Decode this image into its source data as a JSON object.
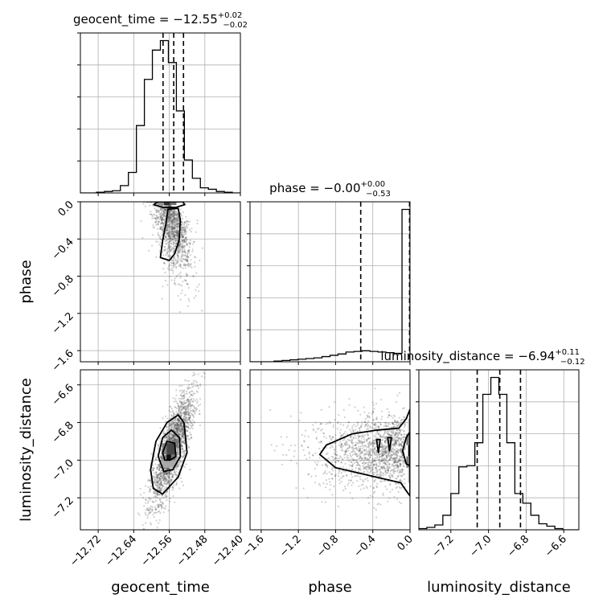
{
  "chart_data": {
    "type": "corner",
    "grid": true,
    "parameters": [
      "geocent_time",
      "phase",
      "luminosity_distance"
    ],
    "axis_labels": {
      "geocent_time": "geocent_time",
      "phase": "phase",
      "luminosity_distance": "luminosity_distance"
    },
    "ranges": {
      "geocent_time": [
        -12.76,
        -12.4
      ],
      "phase": [
        -1.72,
        0.0
      ],
      "luminosity_distance": [
        -7.37,
        -6.52
      ]
    },
    "ticks": {
      "geocent_time": {
        "values": [
          -12.72,
          -12.64,
          -12.56,
          -12.48,
          -12.4
        ],
        "labels": [
          "−12.72",
          "−12.64",
          "−12.56",
          "−12.48",
          "−12.40"
        ]
      },
      "phase": {
        "values": [
          -1.6,
          -1.2,
          -0.8,
          -0.4,
          0.0
        ],
        "labels": [
          "−1.6",
          "−1.2",
          "−0.8",
          "−0.4",
          "0.0"
        ]
      },
      "luminosity_distance": {
        "values": [
          -7.2,
          -7.0,
          -6.8,
          -6.6
        ],
        "labels": [
          "−7.2",
          "−7.0",
          "−6.8",
          "−6.6"
        ]
      }
    },
    "titles": [
      {
        "param": "geocent_time",
        "main": "geocent_time = −12.55",
        "sup": "+0.02",
        "sub": "−0.02"
      },
      {
        "param": "phase",
        "main": "phase = −0.00",
        "sup": "+0.00",
        "sub": "−0.53"
      },
      {
        "param": "luminosity_distance",
        "main": "luminosity_distance = −6.94",
        "sup": "+0.11",
        "sub": "−0.12"
      }
    ],
    "marginals": {
      "geocent_time": {
        "bin_edges": [
          -12.76,
          -12.742,
          -12.724,
          -12.706,
          -12.688,
          -12.67,
          -12.652,
          -12.634,
          -12.616,
          -12.598,
          -12.58,
          -12.562,
          -12.544,
          -12.526,
          -12.508,
          -12.49,
          -12.472,
          -12.454,
          -12.436,
          -12.418,
          -12.4
        ],
        "counts": [
          0,
          0,
          1,
          2,
          3,
          10,
          28,
          92,
          155,
          195,
          208,
          178,
          112,
          45,
          20,
          7,
          5,
          2,
          1,
          0
        ],
        "quantiles": [
          -12.574,
          -12.55,
          -12.528
        ]
      },
      "phase": {
        "bin_edges": [
          -1.72,
          -1.634,
          -1.548,
          -1.462,
          -1.376,
          -1.29,
          -1.204,
          -1.118,
          -1.032,
          -0.946,
          -0.86,
          -0.774,
          -0.688,
          -0.602,
          -0.516,
          -0.43,
          -0.344,
          -0.258,
          -0.172,
          -0.086,
          0.0
        ],
        "counts": [
          0,
          0,
          0,
          1,
          2,
          3,
          4,
          5,
          6,
          8,
          10,
          12,
          15,
          16,
          17,
          16,
          15,
          14,
          13,
          235
        ],
        "quantiles": [
          -0.53,
          -0.005,
          0.0
        ]
      },
      "luminosity_distance": {
        "bin_edges": [
          -7.37,
          -7.3275,
          -7.285,
          -7.2425,
          -7.2,
          -7.1575,
          -7.115,
          -7.0725,
          -7.03,
          -6.9875,
          -6.945,
          -6.9025,
          -6.86,
          -6.8175,
          -6.775,
          -6.7325,
          -6.69,
          -6.6475,
          -6.605,
          -6.5625,
          -6.52
        ],
        "counts": [
          1,
          2,
          4,
          12,
          30,
          52,
          53,
          72,
          112,
          126,
          112,
          72,
          30,
          22,
          12,
          5,
          3,
          1,
          0,
          0
        ],
        "quantiles": [
          -7.06,
          -6.94,
          -6.83
        ]
      }
    },
    "joint": [
      {
        "x": "geocent_time",
        "y": "phase",
        "scatter": {
          "x_mean": -12.555,
          "x_sd": 0.022,
          "y_peak": -0.05,
          "y_slope": -14.0,
          "y_spread": 0.18,
          "n": 1400
        },
        "contours": [
          [
            [
              -12.595,
              -0.03
            ],
            [
              -12.585,
              0.0
            ],
            [
              -12.53,
              0.0
            ],
            [
              -12.525,
              -0.03
            ],
            [
              -12.545,
              -0.06
            ],
            [
              -12.575,
              -0.06
            ]
          ],
          [
            [
              -12.58,
              -0.6
            ],
            [
              -12.575,
              -0.42
            ],
            [
              -12.567,
              -0.22
            ],
            [
              -12.563,
              -0.08
            ],
            [
              -12.54,
              -0.07
            ],
            [
              -12.535,
              -0.2
            ],
            [
              -12.538,
              -0.42
            ],
            [
              -12.548,
              -0.56
            ],
            [
              -12.56,
              -0.63
            ]
          ]
        ],
        "density": [
          {
            "x": [
              -12.572,
              -12.558
            ],
            "y": [
              -0.035,
              0.0
            ],
            "level": 0.85
          },
          {
            "x": [
              -12.558,
              -12.544
            ],
            "y": [
              -0.035,
              0.0
            ],
            "level": 0.55
          },
          {
            "x": [
              -12.586,
              -12.572
            ],
            "y": [
              -0.035,
              0.0
            ],
            "level": 0.4
          }
        ]
      },
      {
        "x": "geocent_time",
        "y": "luminosity_distance",
        "scatter": {
          "x_mean": -12.553,
          "x_sd": 0.024,
          "y_mean": -6.94,
          "y_slope": 5.0,
          "y_spread": 0.09,
          "n": 2200
        },
        "contours": [
          [
            [
              -12.602,
              -7.05
            ],
            [
              -12.59,
              -6.9
            ],
            [
              -12.565,
              -6.8
            ],
            [
              -12.54,
              -6.76
            ],
            [
              -12.527,
              -6.8
            ],
            [
              -12.52,
              -6.96
            ],
            [
              -12.54,
              -7.09
            ],
            [
              -12.575,
              -7.18
            ],
            [
              -12.596,
              -7.15
            ]
          ],
          [
            [
              -12.585,
              -6.98
            ],
            [
              -12.575,
              -6.88
            ],
            [
              -12.555,
              -6.84
            ],
            [
              -12.537,
              -6.88
            ],
            [
              -12.535,
              -6.98
            ],
            [
              -12.552,
              -7.05
            ],
            [
              -12.572,
              -7.06
            ]
          ],
          [
            [
              -12.575,
              -6.96
            ],
            [
              -12.565,
              -6.9
            ],
            [
              -12.548,
              -6.91
            ],
            [
              -12.545,
              -6.98
            ],
            [
              -12.558,
              -7.0
            ],
            [
              -12.57,
              -7.0
            ]
          ]
        ],
        "density": [
          {
            "x": [
              -12.566,
              -12.556
            ],
            "y": [
              -7.0,
              -6.97
            ],
            "level": 1.0
          },
          {
            "x": [
              -12.566,
              -12.546
            ],
            "y": [
              -6.97,
              -6.91
            ],
            "level": 0.75
          },
          {
            "x": [
              -12.576,
              -12.566
            ],
            "y": [
              -6.97,
              -6.91
            ],
            "level": 0.5
          },
          {
            "x": [
              -12.556,
              -12.546
            ],
            "y": [
              -7.0,
              -6.97
            ],
            "level": 0.55
          },
          {
            "x": [
              -12.576,
              -12.54
            ],
            "y": [
              -7.04,
              -7.0
            ],
            "level": 0.3
          }
        ]
      },
      {
        "x": "phase",
        "y": "luminosity_distance",
        "scatter": {
          "x_peak": -0.05,
          "x_spread": 0.45,
          "y_mean": -6.95,
          "y_sd": 0.1,
          "n": 1500
        },
        "contours": [
          [
            [
              0.0,
              -6.73
            ],
            [
              -0.04,
              -6.78
            ],
            [
              -0.12,
              -6.83
            ],
            [
              -0.35,
              -6.84
            ],
            [
              -0.62,
              -6.86
            ],
            [
              -0.9,
              -6.92
            ],
            [
              -0.97,
              -6.97
            ],
            [
              -0.8,
              -7.04
            ],
            [
              -0.45,
              -7.08
            ],
            [
              -0.1,
              -7.12
            ],
            [
              -0.03,
              -7.17
            ],
            [
              0.0,
              -7.19
            ]
          ],
          [
            [
              0.0,
              -6.85
            ],
            [
              -0.04,
              -6.88
            ],
            [
              -0.08,
              -6.95
            ],
            [
              -0.04,
              -7.02
            ],
            [
              0.0,
              -7.03
            ]
          ],
          [
            [
              -0.24,
              -6.88
            ],
            [
              -0.22,
              -6.95
            ],
            [
              -0.2,
              -6.88
            ]
          ],
          [
            [
              -0.36,
              -6.89
            ],
            [
              -0.34,
              -6.96
            ],
            [
              -0.32,
              -6.89
            ]
          ]
        ],
        "density": [
          {
            "x": [
              -0.02,
              0.0
            ],
            "y": [
              -6.98,
              -6.92
            ],
            "level": 1.0
          },
          {
            "x": [
              -0.04,
              0.0
            ],
            "y": [
              -6.92,
              -6.86
            ],
            "level": 0.5
          },
          {
            "x": [
              -0.04,
              0.0
            ],
            "y": [
              -7.04,
              -6.98
            ],
            "level": 0.5
          },
          {
            "x": [
              -0.02,
              0.0
            ],
            "y": [
              -7.12,
              -7.04
            ],
            "level": 0.25
          },
          {
            "x": [
              -0.02,
              0.0
            ],
            "y": [
              -6.86,
              -6.78
            ],
            "level": 0.25
          }
        ]
      }
    ]
  }
}
